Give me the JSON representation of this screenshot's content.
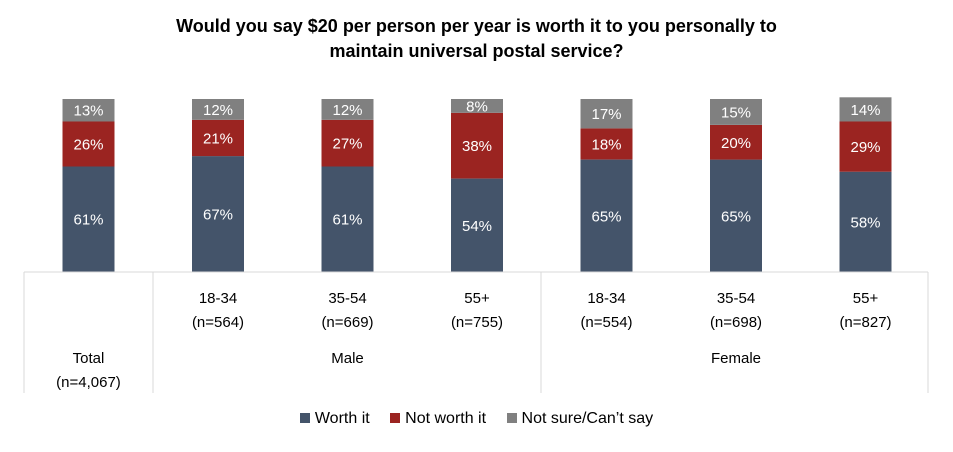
{
  "chart_data": {
    "type": "bar",
    "stacked": true,
    "title": "Would you say $20 per person per year is worth it to you personally to maintain universal postal service?",
    "title_lines": [
      "Would you say $20 per person per year is worth it to you personally to",
      "maintain universal postal service?"
    ],
    "categories": [
      {
        "label": "Total",
        "n": "(n=4,067)",
        "group": ""
      },
      {
        "label": "18-34",
        "n": "(n=564)",
        "group": "Male"
      },
      {
        "label": "35-54",
        "n": "(n=669)",
        "group": "Male"
      },
      {
        "label": "55+",
        "n": "(n=755)",
        "group": "Male"
      },
      {
        "label": "18-34",
        "n": "(n=554)",
        "group": "Female"
      },
      {
        "label": "35-54",
        "n": "(n=698)",
        "group": "Female"
      },
      {
        "label": "55+",
        "n": "(n=827)",
        "group": "Female"
      }
    ],
    "groups": [
      "Male",
      "Female"
    ],
    "series": [
      {
        "name": "Worth it",
        "color": "#44546a",
        "values": [
          61,
          67,
          61,
          54,
          65,
          65,
          58
        ]
      },
      {
        "name": "Not worth it",
        "color": "#9b2421",
        "values": [
          26,
          21,
          27,
          38,
          18,
          20,
          29
        ]
      },
      {
        "name": "Not sure/Can’t say",
        "color": "#808080",
        "values": [
          13,
          12,
          12,
          8,
          17,
          15,
          14
        ]
      }
    ],
    "value_suffix": "%",
    "ylim": [
      0,
      100
    ],
    "grid": false,
    "legend_position": "bottom"
  }
}
